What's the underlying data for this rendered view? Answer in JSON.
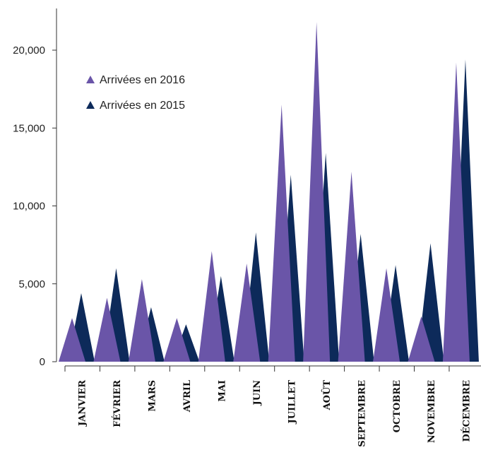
{
  "chart_data": {
    "type": "area",
    "categories": [
      "JANVIER",
      "FÉVRIER",
      "MARS",
      "AVRIL",
      "MAI",
      "JUIN",
      "JUILLET",
      "AOÛT",
      "SEPTEMBRE",
      "OCTOBRE",
      "NOVEMBRE",
      "DÉCEMBRE"
    ],
    "series": [
      {
        "name": "Arrivées en 2015",
        "color": "#0d2a5a",
        "values": [
          4400,
          6000,
          3500,
          2400,
          5500,
          8300,
          12000,
          13400,
          8200,
          6200,
          7600,
          19400
        ]
      },
      {
        "name": "Arrivées en 2016",
        "color": "#6a55a8",
        "values": [
          2800,
          4100,
          5300,
          2800,
          7100,
          6300,
          16500,
          21800,
          12200,
          6000,
          2900,
          19200
        ]
      }
    ],
    "yticks": [
      0,
      5000,
      10000,
      15000,
      20000
    ],
    "ytick_labels": [
      "0",
      "5,000",
      "10,000",
      "15,000",
      "20,000"
    ],
    "ylim": [
      0,
      22000
    ],
    "legend_position": "top-left"
  }
}
